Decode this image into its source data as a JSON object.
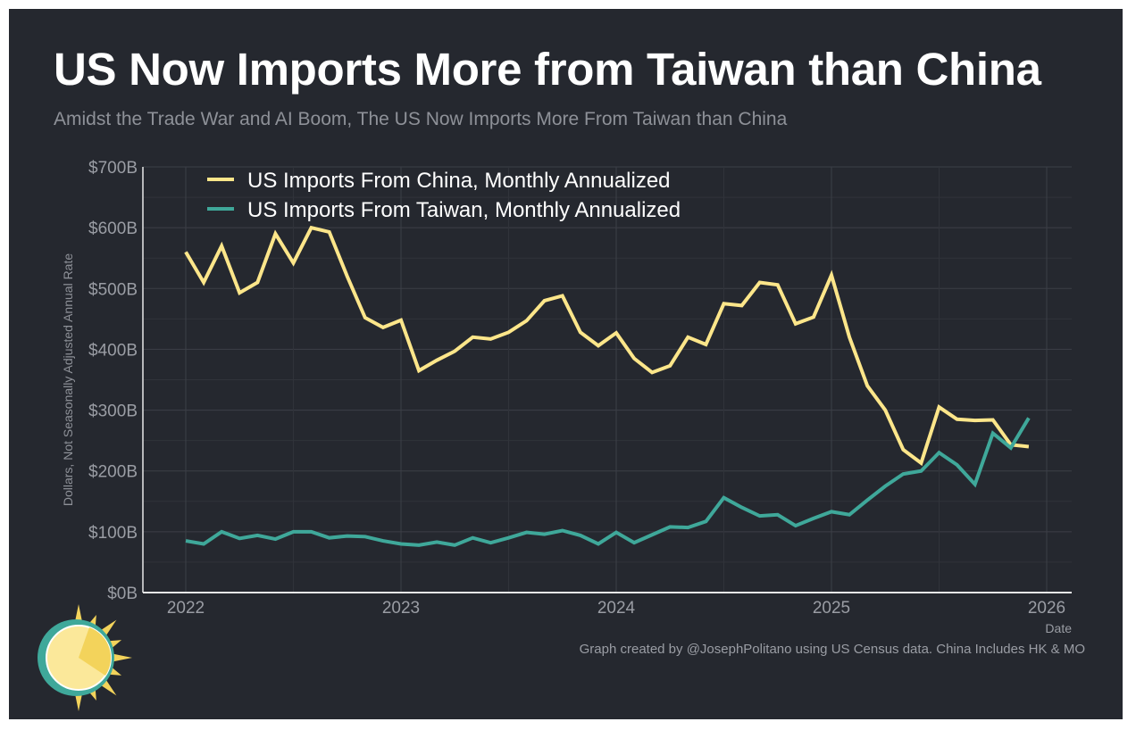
{
  "title": "US Now Imports More from Taiwan than China",
  "subtitle": "Amidst the Trade War and AI Boom, The US Now Imports More From Taiwan than China",
  "caption": "Graph created by @JosephPolitano using US Census data. China Includes HK & MO",
  "colors": {
    "background": "#25282f",
    "china": "#fde68a",
    "taiwan": "#3fa89a",
    "grid": "#3a3d45",
    "text": "#9a9da4"
  },
  "chart_data": {
    "type": "line",
    "title": "US Now Imports More from Taiwan than China",
    "xlabel": "Date",
    "ylabel": "Dollars, Not Seasonally Adjusted Annual Rate",
    "ylim": [
      0,
      700
    ],
    "xlim": [
      2021.8,
      2026.1
    ],
    "yticks": [
      0,
      100,
      200,
      300,
      400,
      500,
      600,
      700
    ],
    "ytick_labels": [
      "$0B",
      "$100B",
      "$200B",
      "$300B",
      "$400B",
      "$500B",
      "$600B",
      "$700B"
    ],
    "xticks": [
      2022,
      2023,
      2024,
      2025,
      2026
    ],
    "xtick_labels": [
      "2022",
      "2023",
      "2024",
      "2025",
      "2026"
    ],
    "grid": true,
    "legend_position": "top-left",
    "x_start": "2022-01",
    "x_step": "monthly",
    "series": [
      {
        "name": "US Imports From China, Monthly Annualized",
        "color": "#fde68a",
        "values": [
          560,
          510,
          570,
          493,
          510,
          590,
          542,
          600,
          593,
          520,
          452,
          436,
          448,
          365,
          382,
          397,
          420,
          417,
          428,
          447,
          480,
          488,
          428,
          406,
          427,
          385,
          362,
          373,
          420,
          408,
          475,
          472,
          510,
          506,
          442,
          453,
          522,
          420,
          340,
          300,
          235,
          213,
          305,
          285,
          283,
          284,
          243,
          240
        ]
      },
      {
        "name": "US Imports From Taiwan, Monthly Annualized",
        "color": "#3fa89a",
        "values": [
          85,
          80,
          100,
          89,
          94,
          88,
          100,
          100,
          90,
          93,
          92,
          85,
          80,
          78,
          83,
          78,
          90,
          82,
          90,
          99,
          96,
          102,
          94,
          80,
          99,
          82,
          95,
          108,
          107,
          117,
          156,
          140,
          126,
          128,
          110,
          122,
          133,
          128,
          152,
          175,
          195,
          200,
          230,
          210,
          178,
          262,
          238,
          287
        ]
      }
    ]
  }
}
